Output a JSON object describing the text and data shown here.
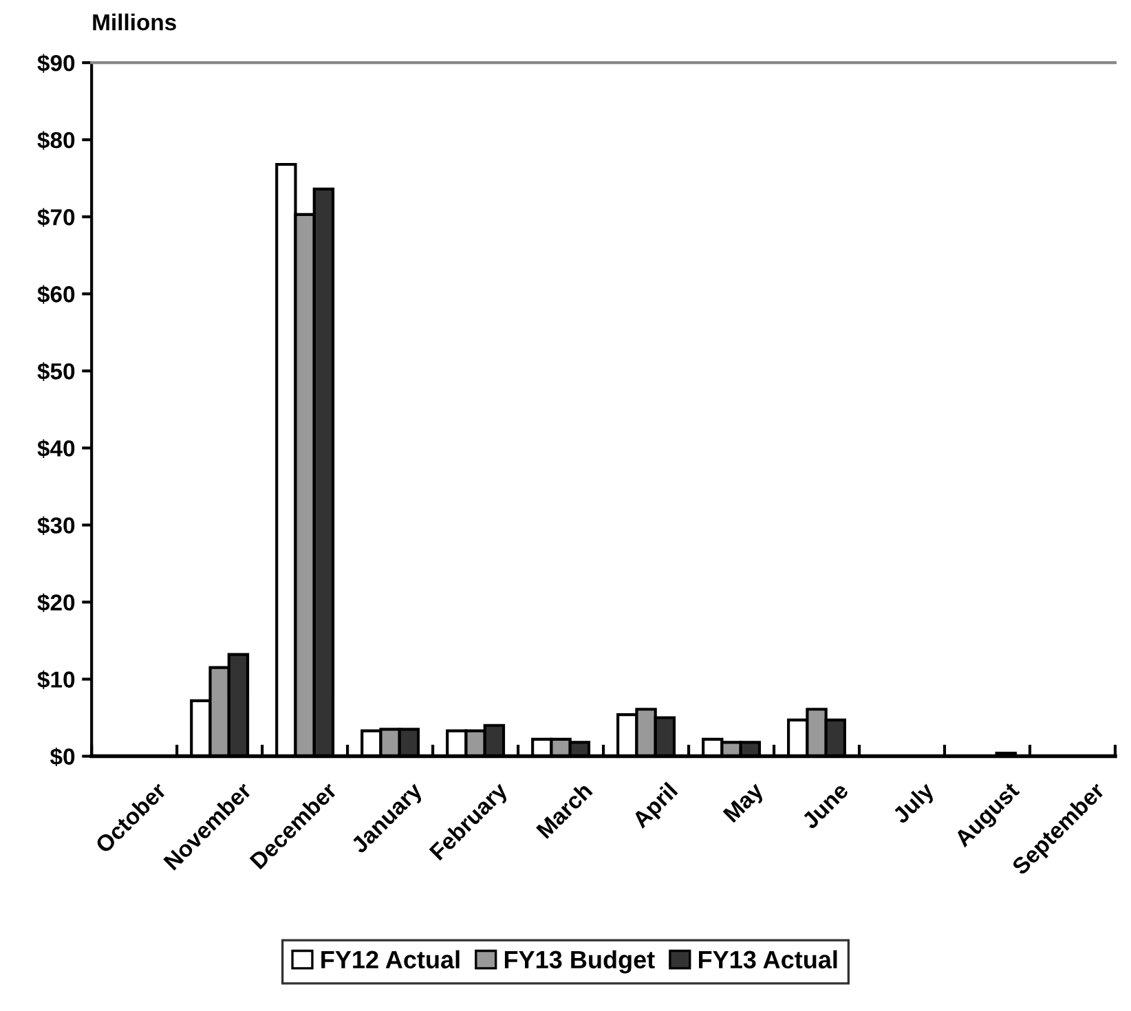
{
  "chart_data": {
    "type": "bar",
    "ylabel": "Millions",
    "categories": [
      "October",
      "November",
      "December",
      "January",
      "February",
      "March",
      "April",
      "May",
      "June",
      "July",
      "August",
      "September"
    ],
    "series": [
      {
        "name": "FY12 Actual",
        "color": "#ffffff",
        "values": [
          null,
          7.2,
          76.8,
          3.3,
          3.3,
          2.2,
          5.4,
          2.2,
          4.7,
          null,
          null,
          null
        ]
      },
      {
        "name": "FY13 Budget",
        "color": "#999999",
        "values": [
          null,
          11.5,
          70.3,
          3.5,
          3.3,
          2.2,
          6.1,
          1.8,
          6.1,
          null,
          null,
          null
        ]
      },
      {
        "name": "FY13 Actual",
        "color": "#333333",
        "values": [
          null,
          13.2,
          73.6,
          3.5,
          4.0,
          1.8,
          5.0,
          1.8,
          4.7,
          null,
          0.4,
          null
        ]
      }
    ],
    "ylim": [
      0,
      90
    ],
    "yticks": [
      {
        "value": 0,
        "label": "$0"
      },
      {
        "value": 10,
        "label": "$10"
      },
      {
        "value": 20,
        "label": "$20"
      },
      {
        "value": 30,
        "label": "$30"
      },
      {
        "value": 40,
        "label": "$40"
      },
      {
        "value": 50,
        "label": "$50"
      },
      {
        "value": 60,
        "label": "$60"
      },
      {
        "value": 70,
        "label": "$70"
      },
      {
        "value": 80,
        "label": "$80"
      },
      {
        "value": 90,
        "label": "$90"
      }
    ],
    "grid": false,
    "legend": "bottom"
  }
}
